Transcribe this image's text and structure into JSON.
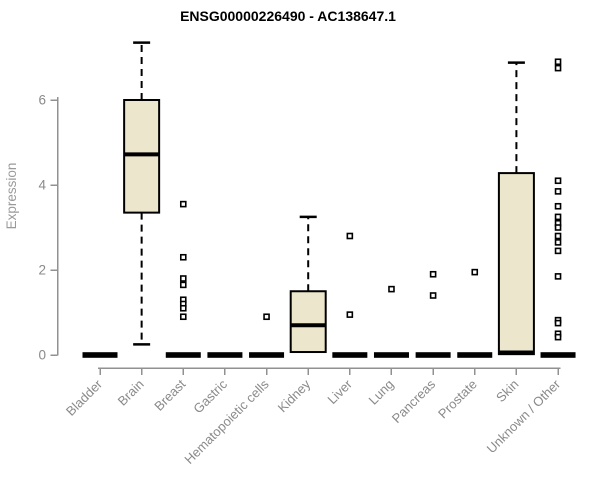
{
  "title": "ENSG00000226490 - AC138647.1",
  "y_axis": {
    "label": "Expression",
    "tick_labels": [
      "0",
      "2",
      "4",
      "6"
    ]
  },
  "chart_data": {
    "type": "boxplot",
    "title": "ENSG00000226490 - AC138647.1",
    "xlabel": "",
    "ylabel": "Expression",
    "yticks": [
      0,
      2,
      4,
      6
    ],
    "ylim": [
      0,
      7.6
    ],
    "grid": false,
    "legend": "none",
    "box_fill": "#ece7cc",
    "box_stroke": "#000000",
    "axis_color": "#919191",
    "label_color": "#8a8a8a",
    "categories": [
      "Bladder",
      "Brain",
      "Breast",
      "Gastric",
      "Hematopoietic cells",
      "Kidney",
      "Liver",
      "Lung",
      "Pancreas",
      "Prostate",
      "Skin",
      "Unknown / Other"
    ],
    "series": [
      {
        "category": "Bladder",
        "q1": 0,
        "median": 0,
        "q3": 0,
        "whisker_low": 0,
        "whisker_high": 0,
        "outliers": []
      },
      {
        "category": "Brain",
        "q1": 3.35,
        "median": 4.72,
        "q3": 6.0,
        "whisker_low": 0.25,
        "whisker_high": 7.35,
        "outliers": []
      },
      {
        "category": "Breast",
        "q1": 0,
        "median": 0,
        "q3": 0,
        "whisker_low": 0,
        "whisker_high": 0,
        "outliers": [
          3.55,
          2.3,
          1.8,
          1.65,
          1.3,
          1.2,
          1.1,
          0.9
        ]
      },
      {
        "category": "Gastric",
        "q1": 0,
        "median": 0,
        "q3": 0,
        "whisker_low": 0,
        "whisker_high": 0,
        "outliers": []
      },
      {
        "category": "Hematopoietic cells",
        "q1": 0,
        "median": 0,
        "q3": 0,
        "whisker_low": 0,
        "whisker_high": 0,
        "outliers": [
          0.9
        ]
      },
      {
        "category": "Kidney",
        "q1": 0.07,
        "median": 0.7,
        "q3": 1.5,
        "whisker_low": 0.07,
        "whisker_high": 3.25,
        "outliers": []
      },
      {
        "category": "Liver",
        "q1": 0,
        "median": 0,
        "q3": 0,
        "whisker_low": 0,
        "whisker_high": 0,
        "outliers": [
          2.8,
          0.95
        ]
      },
      {
        "category": "Lung",
        "q1": 0,
        "median": 0,
        "q3": 0,
        "whisker_low": 0,
        "whisker_high": 0,
        "outliers": [
          1.55
        ]
      },
      {
        "category": "Pancreas",
        "q1": 0,
        "median": 0,
        "q3": 0,
        "whisker_low": 0,
        "whisker_high": 0,
        "outliers": [
          1.9,
          1.4
        ]
      },
      {
        "category": "Prostate",
        "q1": 0,
        "median": 0,
        "q3": 0,
        "whisker_low": 0,
        "whisker_high": 0,
        "outliers": [
          1.95
        ]
      },
      {
        "category": "Skin",
        "q1": 0.02,
        "median": 0.06,
        "q3": 4.28,
        "whisker_low": 0.02,
        "whisker_high": 6.88,
        "outliers": []
      },
      {
        "category": "Unknown / Other",
        "q1": 0,
        "median": 0,
        "q3": 0,
        "whisker_low": 0,
        "whisker_high": 0,
        "outliers": [
          6.9,
          6.75,
          4.1,
          3.85,
          3.5,
          3.25,
          3.1,
          3.0,
          2.8,
          2.65,
          2.45,
          1.85,
          0.82,
          0.75,
          0.5,
          0.42
        ]
      }
    ]
  }
}
